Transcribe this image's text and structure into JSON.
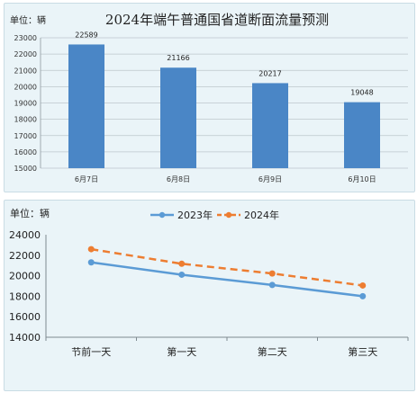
{
  "chart_data": [
    {
      "type": "bar",
      "title": "2024年端午普通国省道断面流量预测",
      "unit_label": "单位：辆",
      "categories": [
        "6月7日",
        "6月8日",
        "6月9日",
        "6月10日"
      ],
      "values": [
        22589,
        21166,
        20217,
        19048
      ],
      "data_labels": [
        "22589",
        "21166",
        "20217",
        "19048"
      ],
      "ylim": [
        15000,
        23000
      ],
      "yticks": [
        "23000",
        "22000",
        "21000",
        "20000",
        "19000",
        "18000",
        "17000",
        "16000",
        "15000"
      ],
      "grid": true,
      "colors": {
        "bar": "#4a86c6"
      }
    },
    {
      "type": "line",
      "unit_label": "单位：辆",
      "categories": [
        "节前一天",
        "第一天",
        "第二天",
        "第三天"
      ],
      "series": [
        {
          "name": "2023年",
          "values": [
            21300,
            20100,
            19100,
            18000
          ],
          "color": "#5b9bd5",
          "style": "solid"
        },
        {
          "name": "2024年",
          "values": [
            22589,
            21166,
            20217,
            19048
          ],
          "color": "#ed7d31",
          "style": "dashed"
        }
      ],
      "ylim": [
        14000,
        24000
      ],
      "yticks": [
        "24000",
        "22000",
        "20000",
        "18000",
        "16000",
        "14000"
      ],
      "legend": "top-center",
      "grid": false
    }
  ]
}
